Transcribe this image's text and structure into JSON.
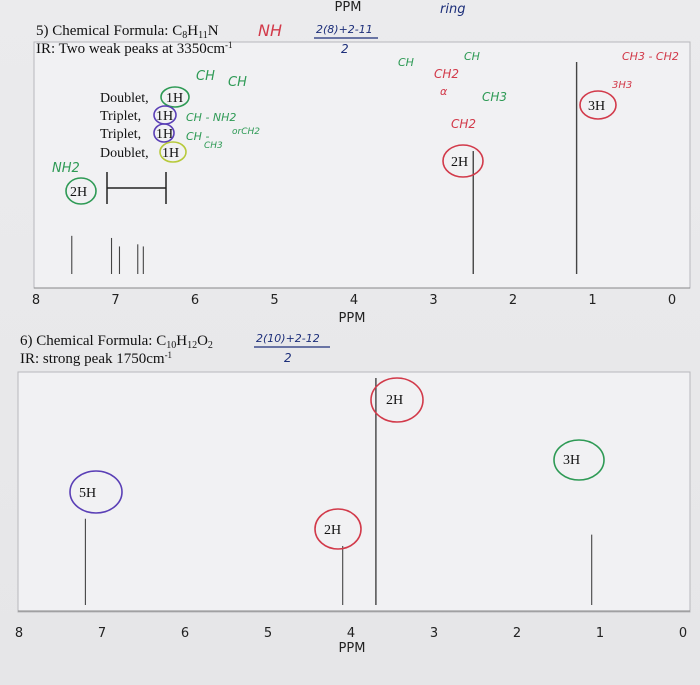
{
  "colors": {
    "green": "#2e9a55",
    "purple": "#5a3fb6",
    "red": "#d23a4a",
    "navy": "#1d2f7a",
    "ink": "#111111"
  },
  "chart_data": [
    {
      "type": "nmr-spectrum",
      "title": "5) Chemical Formula: C8H11N",
      "title_parts": {
        "main": "5) Chemical Formula: C",
        "c": "8",
        "h": "H",
        "hn": "11",
        "n": "N"
      },
      "subtitle": "IR: Two weak peaks at 3350cm",
      "subtitle_sup": "-1",
      "xlabel": "PPM",
      "xlim": [
        8.2,
        -0.15
      ],
      "ticks": [
        "8",
        "7",
        "6",
        "5",
        "4",
        "3",
        "2",
        "1",
        "0"
      ],
      "peaks": [
        {
          "ppm": 7.55,
          "rel_height": 0.18,
          "integration": "2H"
        },
        {
          "ppm": 7.05,
          "rel_height": 0.17,
          "integration": "1H"
        },
        {
          "ppm": 6.95,
          "rel_height": 0.13,
          "integration": "1H"
        },
        {
          "ppm": 6.72,
          "rel_height": 0.14,
          "integration": "1H"
        },
        {
          "ppm": 6.65,
          "rel_height": 0.13,
          "integration": "1H"
        },
        {
          "ppm": 2.5,
          "rel_height": 0.58,
          "integration": "2H"
        },
        {
          "ppm": 1.2,
          "rel_height": 1.0,
          "integration": "3H"
        }
      ],
      "labels": {
        "doublet1": "Doublet,",
        "doublet1_int": "1H",
        "triplet1": "Triplet,",
        "triplet1_int": "1H",
        "triplet2": "Triplet,",
        "triplet2_int": "1H",
        "doublet2": "Doublet,",
        "doublet2_int": "1H",
        "int_2h_left": "2H",
        "int_2h_mid": "2H",
        "int_3h": "3H"
      }
    },
    {
      "type": "nmr-spectrum",
      "title": "6) Chemical Formula: C10H12O2",
      "title_parts": {
        "main": "6) Chemical Formula: C",
        "c": "10",
        "h": "H",
        "hn": "12",
        "o": "O",
        "on": "2"
      },
      "subtitle": "IR: strong peak 1750cm",
      "subtitle_sup": "-1",
      "xlabel": "PPM",
      "xlim": [
        8.2,
        -0.15
      ],
      "ticks": [
        "8",
        "7",
        "6",
        "5",
        "4",
        "3",
        "2",
        "1",
        "0"
      ],
      "peaks": [
        {
          "ppm": 7.2,
          "rel_height": 0.38,
          "integration": "5H"
        },
        {
          "ppm": 4.1,
          "rel_height": 0.26,
          "integration": "2H"
        },
        {
          "ppm": 3.7,
          "rel_height": 1.0,
          "integration": "2H"
        },
        {
          "ppm": 1.1,
          "rel_height": 0.31,
          "integration": "3H"
        }
      ],
      "labels": {
        "int_5h": "5H",
        "int_2h_a": "2H",
        "int_2h_b": "2H",
        "int_3h": "3H"
      }
    }
  ],
  "annotations": {
    "top_ppm": "PPM",
    "nh": "NH",
    "dou_top": "2(8)+2-11",
    "dou_bottom": "2",
    "ring": "ring",
    "ch_ch": "CH",
    "ch_ch2": "CH",
    "ch_nh2": "CH - NH2",
    "or_ch2": "orCH2",
    "ch3_small": "CH3",
    "ch_dash": "CH -",
    "nh2": "NH2",
    "ch2": "CH2",
    "ch2_b": "CH2",
    "ch3": "CH3",
    "ch3_right": "CH3 - CH2",
    "three_h": "3H3",
    "alpha": "α",
    "ch_small": "CH",
    "ch_small2": "CH",
    "dou2_top": "2(10)+2-12",
    "dou2_bottom": "2"
  }
}
